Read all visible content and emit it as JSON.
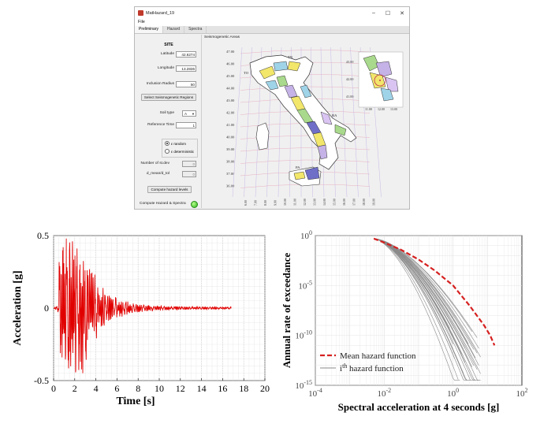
{
  "window": {
    "title": "MatHazard_19",
    "minimize_glyph": "–",
    "maximize_glyph": "☐",
    "close_glyph": "✕",
    "icon": "matlab-app-icon"
  },
  "menu": {
    "file_label": "File"
  },
  "tabs": [
    {
      "label": "Preliminary",
      "active": true
    },
    {
      "label": "Hazard",
      "active": false
    },
    {
      "label": "Spectra",
      "active": false
    }
  ],
  "site_panel": {
    "title": "SITE",
    "latitude_label": "Latitude",
    "latitude_value": "42.6274",
    "longitude_label": "Longitude",
    "longitude_value": "13.2836",
    "inclusion_radius_label": "Inclusion Radius",
    "inclusion_radius_value": "50",
    "select_regions_button": "Select Seismogenetic Regions",
    "soil_type_label": "Soil type",
    "soil_type_value": "A",
    "reference_time_label": "Reference Time",
    "reference_time_value": "1",
    "radio_random_label": "ε random",
    "radio_deterministic_label": "ε deterministic",
    "num_stdev_label": "Number of st.dev",
    "num_stdev_value": "0",
    "d_mean_tol_label": "d_mean/d_tol",
    "d_mean_tol_value": "0",
    "compute_levels_button": "Compute hazard levels",
    "compute_spectra_label": "Compute Hazard & Spectra",
    "status_color": "#2db51f"
  },
  "map_panel": {
    "title": "Seismogenetic Areas",
    "lat_ticks": [
      "47.00",
      "46.00",
      "45.00",
      "44.00",
      "43.00",
      "42.00",
      "41.00",
      "40.00",
      "39.00",
      "38.00",
      "37.00",
      "36.00"
    ],
    "lon_ticks": [
      "6.00",
      "7.00",
      "8.00",
      "9.00",
      "10.00",
      "11.00",
      "12.00",
      "13.00",
      "14.00",
      "15.00",
      "16.00",
      "17.00",
      "18.00",
      "19.00"
    ],
    "region_labels": [
      "TN",
      "TO",
      "BA",
      "PA"
    ],
    "inset_lat_ticks": [
      "43.00",
      "42.00",
      "41.00"
    ],
    "inset_lon_ticks": [
      "11.00",
      "12.00",
      "13.00"
    ],
    "zone_colors": [
      "#f2e66b",
      "#9fd3e8",
      "#a9d98c",
      "#c5b2e6",
      "#6f6fc8",
      "#d9c4f2"
    ]
  },
  "charts": [
    {
      "chart_data": {
        "type": "line",
        "xlabel": "Time [s]",
        "ylabel": "Acceleration [g]",
        "xlim": [
          0,
          20
        ],
        "ylim": [
          -0.5,
          0.5
        ],
        "x_ticks": [
          "0",
          "2",
          "4",
          "6",
          "8",
          "10",
          "12",
          "14",
          "16",
          "18",
          "20"
        ],
        "y_ticks": [
          "0.5",
          "0",
          "-0.5"
        ],
        "grid": true,
        "line_color": "#e10000",
        "duration": 16.8,
        "peaks": [
          {
            "t": 0.9,
            "a": 0.42
          },
          {
            "t": 1.2,
            "a": 0.48
          },
          {
            "t": 1.5,
            "a": -0.3
          },
          {
            "t": 1.8,
            "a": 0.4
          },
          {
            "t": 2.1,
            "a": -0.43
          },
          {
            "t": 2.5,
            "a": 0.3
          },
          {
            "t": 3.2,
            "a": -0.22
          }
        ]
      }
    },
    {
      "chart_data": {
        "type": "line",
        "xlabel": "Spectral acceleration at 4 seconds [g]",
        "ylabel": "Annual rate of exceedance",
        "x_scale": "log",
        "y_scale": "log",
        "xlim": [
          0.0001,
          100
        ],
        "ylim": [
          1e-15,
          1
        ],
        "x_ticks": [
          "10-4",
          "10-2",
          "100",
          "102"
        ],
        "y_ticks": [
          "100",
          "10-5",
          "10-10",
          "10-15"
        ],
        "grid": true,
        "legend_position": "bottom-left",
        "series": [
          {
            "name": "Mean hazard function",
            "color": "#d62020",
            "dash": true,
            "x": [
              0.005,
              0.01,
              0.03,
              0.1,
              0.3,
              1,
              3,
              8,
              12,
              16
            ],
            "y": [
              0.5,
              0.2,
              0.04,
              0.004,
              0.0003,
              1e-05,
              1e-07,
              1e-09,
              1e-10,
              1e-11
            ]
          },
          {
            "name": "i<sup>th</sup> hazard function",
            "color": "#8a8a8a",
            "dash": false,
            "count": 30
          }
        ],
        "legend": [
          "Mean hazard function",
          "ith hazard function"
        ]
      }
    }
  ]
}
